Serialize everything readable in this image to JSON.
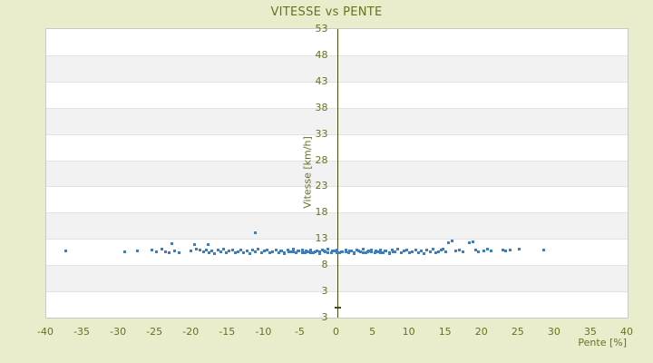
{
  "title": "VITESSE vs PENTE",
  "colors": {
    "page_background": "#e9edcb",
    "text_olive": "#6b701f",
    "band_white": "#ffffff",
    "band_gray": "#f2f2f2",
    "gridline": "#e2e2e2",
    "plot_border": "#c9c9c9",
    "axis_line": "#484c06",
    "point_blue": "#3d7ec1"
  },
  "chart_data": {
    "type": "scatter",
    "title": "VITESSE vs PENTE",
    "xlabel": "Pente [%]",
    "ylabel": "Vitesse [km/h]",
    "xlim": [
      -40,
      40
    ],
    "ylim": [
      -2,
      53
    ],
    "x_ticks": [
      -40,
      -35,
      -30,
      -25,
      -20,
      -15,
      -10,
      -5,
      0,
      5,
      10,
      15,
      20,
      25,
      30,
      35,
      40
    ],
    "y_ticks": [
      53,
      48,
      43,
      38,
      33,
      28,
      23,
      18,
      13,
      8,
      3
    ],
    "y_axis_min_label": "3",
    "grid": "alternating horizontal bands of 5 units, white / light gray, thin gridlines at each y tick",
    "legend": "none",
    "axis_note": "vertical dark olive axis line drawn at Pente = 0 with a small tick at Vitesse = 0",
    "series": [
      {
        "name": "Vitesse",
        "marker": "small square",
        "color": "#3d7ec1",
        "points": [
          [
            -37.3,
            10.7
          ],
          [
            -29.2,
            10.6
          ],
          [
            -27.4,
            10.7
          ],
          [
            -25.4,
            10.8
          ],
          [
            -24.8,
            10.6
          ],
          [
            -24.1,
            11.0
          ],
          [
            -23.6,
            10.6
          ],
          [
            -23.1,
            10.4
          ],
          [
            -22.7,
            12.1
          ],
          [
            -22.4,
            10.7
          ],
          [
            -21.7,
            10.4
          ],
          [
            -20.1,
            10.7
          ],
          [
            -19.6,
            11.9
          ],
          [
            -19.3,
            11.1
          ],
          [
            -18.9,
            10.8
          ],
          [
            -17.7,
            11.9
          ],
          [
            -11.2,
            14.1
          ],
          [
            -18.4,
            10.6
          ],
          [
            -18.0,
            10.95
          ],
          [
            -17.6,
            10.35
          ],
          [
            -17.2,
            10.75
          ],
          [
            -16.8,
            10.25
          ],
          [
            -16.4,
            10.85
          ],
          [
            -16.0,
            10.5
          ],
          [
            -15.6,
            11.0
          ],
          [
            -15.2,
            10.3
          ],
          [
            -14.8,
            10.7
          ],
          [
            -14.4,
            10.9
          ],
          [
            -14.0,
            10.4
          ],
          [
            -13.6,
            10.6
          ],
          [
            -13.2,
            10.95
          ],
          [
            -12.8,
            10.35
          ],
          [
            -12.4,
            10.75
          ],
          [
            -12.0,
            10.25
          ],
          [
            -11.6,
            10.85
          ],
          [
            -11.2,
            10.5
          ],
          [
            -10.8,
            11.0
          ],
          [
            -10.4,
            10.3
          ],
          [
            -10.0,
            10.7
          ],
          [
            -9.6,
            10.9
          ],
          [
            -9.2,
            10.4
          ],
          [
            -8.8,
            10.6
          ],
          [
            -8.4,
            10.95
          ],
          [
            -8.0,
            10.35
          ],
          [
            -7.6,
            10.75
          ],
          [
            -7.2,
            10.25
          ],
          [
            -6.8,
            10.85
          ],
          [
            -6.4,
            10.5
          ],
          [
            -6.0,
            11.0
          ],
          [
            -5.6,
            10.3
          ],
          [
            -5.2,
            10.7
          ],
          [
            -4.8,
            10.9
          ],
          [
            -4.4,
            10.4
          ],
          [
            -4.0,
            10.6
          ],
          [
            -3.6,
            10.95
          ],
          [
            -3.2,
            10.35
          ],
          [
            -2.8,
            10.75
          ],
          [
            -2.4,
            10.25
          ],
          [
            -2.0,
            10.85
          ],
          [
            -1.6,
            10.5
          ],
          [
            -1.2,
            11.0
          ],
          [
            -0.8,
            10.3
          ],
          [
            -0.4,
            10.7
          ],
          [
            0.0,
            10.9
          ],
          [
            0.4,
            10.4
          ],
          [
            0.8,
            10.6
          ],
          [
            1.2,
            10.95
          ],
          [
            1.6,
            10.35
          ],
          [
            2.0,
            10.75
          ],
          [
            2.4,
            10.25
          ],
          [
            2.8,
            10.85
          ],
          [
            3.2,
            10.5
          ],
          [
            3.6,
            11.0
          ],
          [
            4.0,
            10.3
          ],
          [
            4.4,
            10.7
          ],
          [
            4.8,
            10.9
          ],
          [
            5.2,
            10.4
          ],
          [
            5.6,
            10.6
          ],
          [
            6.0,
            10.95
          ],
          [
            6.4,
            10.35
          ],
          [
            6.8,
            10.75
          ],
          [
            7.2,
            10.25
          ],
          [
            7.6,
            10.85
          ],
          [
            8.0,
            10.5
          ],
          [
            8.4,
            11.0
          ],
          [
            8.8,
            10.3
          ],
          [
            9.2,
            10.7
          ],
          [
            9.6,
            10.9
          ],
          [
            10.0,
            10.4
          ],
          [
            10.4,
            10.6
          ],
          [
            10.8,
            10.95
          ],
          [
            11.2,
            10.35
          ],
          [
            11.6,
            10.75
          ],
          [
            12.0,
            10.25
          ],
          [
            12.4,
            10.85
          ],
          [
            12.8,
            10.5
          ],
          [
            13.2,
            11.0
          ],
          [
            13.6,
            10.3
          ],
          [
            -7.8,
            10.7
          ],
          [
            -7.2,
            10.4
          ],
          [
            -6.6,
            10.6
          ],
          [
            -6.0,
            10.5
          ],
          [
            -5.4,
            10.75
          ],
          [
            -4.8,
            10.35
          ],
          [
            -4.2,
            10.7
          ],
          [
            -3.6,
            10.4
          ],
          [
            -3.0,
            10.6
          ],
          [
            -2.4,
            10.5
          ],
          [
            -1.8,
            10.75
          ],
          [
            -1.2,
            10.35
          ],
          [
            -0.6,
            10.7
          ],
          [
            0.0,
            10.4
          ],
          [
            0.6,
            10.6
          ],
          [
            1.2,
            10.5
          ],
          [
            1.8,
            10.75
          ],
          [
            2.4,
            10.35
          ],
          [
            3.0,
            10.7
          ],
          [
            3.6,
            10.4
          ],
          [
            4.2,
            10.6
          ],
          [
            4.8,
            10.5
          ],
          [
            5.4,
            10.75
          ],
          [
            6.0,
            10.35
          ],
          [
            6.6,
            10.7
          ],
          [
            7.2,
            10.4
          ],
          [
            7.8,
            10.6
          ],
          [
            14.0,
            10.5
          ],
          [
            14.3,
            10.8
          ],
          [
            14.6,
            11.1
          ],
          [
            15.0,
            10.6
          ],
          [
            15.3,
            12.2
          ],
          [
            15.9,
            12.6
          ],
          [
            16.3,
            10.7
          ],
          [
            16.8,
            10.9
          ],
          [
            17.4,
            10.6
          ],
          [
            18.2,
            12.2
          ],
          [
            18.7,
            12.4
          ],
          [
            19.1,
            10.8
          ],
          [
            19.5,
            10.6
          ],
          [
            20.2,
            10.7
          ],
          [
            20.7,
            11.0
          ],
          [
            21.2,
            10.7
          ],
          [
            22.9,
            10.8
          ],
          [
            23.2,
            10.7
          ],
          [
            23.9,
            10.8
          ],
          [
            25.1,
            11.0
          ],
          [
            28.4,
            10.8
          ]
        ]
      }
    ]
  }
}
